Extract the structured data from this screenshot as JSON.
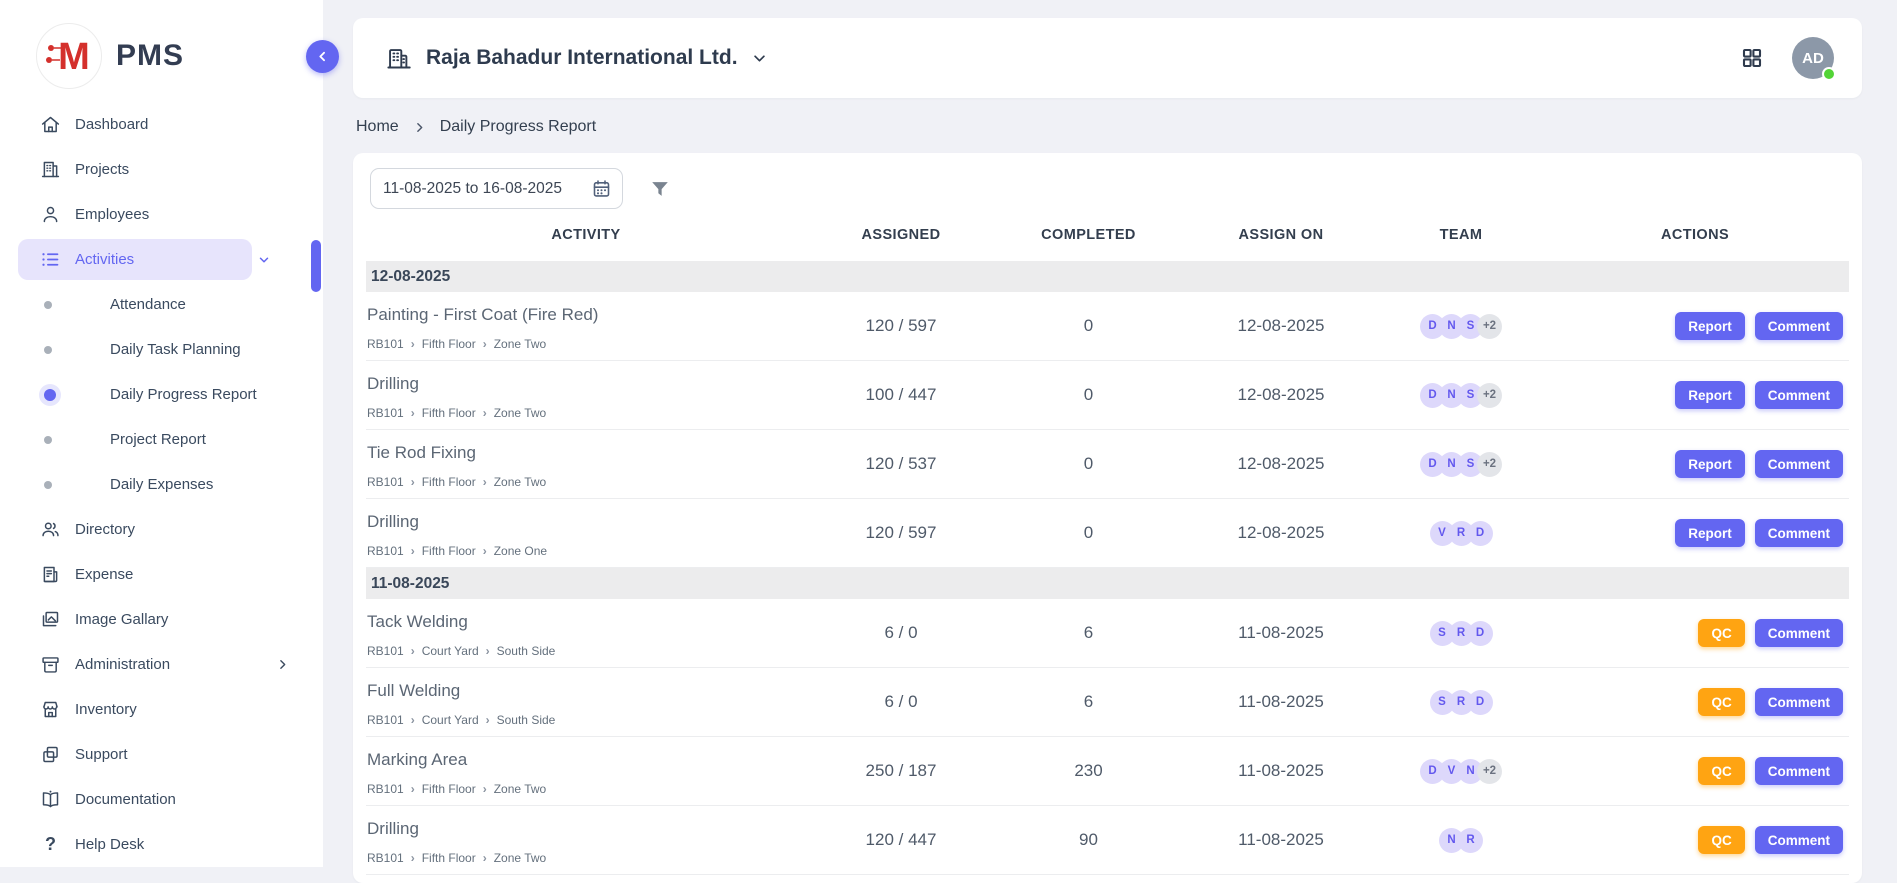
{
  "app": {
    "logo_letter": "M",
    "logo_text": "PMS"
  },
  "colors": {
    "accent": "#6366F1",
    "accent_light": "#E7E4FC",
    "qc_orange": "#FFA412",
    "logo_red": "#D4302C",
    "page_bg": "#F0F1F6",
    "avatar_bg": "#8C98A8",
    "online_green": "#53D437",
    "group_row_bg": "#ECECED"
  },
  "sidebar": {
    "items": [
      {
        "label": "Dashboard",
        "icon": "home-icon"
      },
      {
        "label": "Projects",
        "icon": "building-icon"
      },
      {
        "label": "Employees",
        "icon": "user-icon"
      },
      {
        "label": "Activities",
        "icon": "list-icon",
        "state": "active-expanded"
      },
      {
        "label": "Attendance",
        "icon": "dot"
      },
      {
        "label": "Daily Task Planning",
        "icon": "dot"
      },
      {
        "label": "Daily Progress Report",
        "icon": "dot",
        "state": "active"
      },
      {
        "label": "Project Report",
        "icon": "dot"
      },
      {
        "label": "Daily Expenses",
        "icon": "dot"
      },
      {
        "label": "Directory",
        "icon": "users-icon"
      },
      {
        "label": "Expense",
        "icon": "receipt-icon"
      },
      {
        "label": "Image Gallary",
        "icon": "image-icon"
      },
      {
        "label": "Administration",
        "icon": "archive-icon",
        "chevron": "right"
      },
      {
        "label": "Inventory",
        "icon": "store-icon"
      },
      {
        "label": "Support",
        "icon": "copy-icon"
      },
      {
        "label": "Documentation",
        "icon": "book-icon"
      },
      {
        "label": "Help Desk",
        "icon": "question-icon"
      }
    ]
  },
  "header": {
    "company": "Raja Bahadur International Ltd.",
    "avatar_initials": "AD"
  },
  "breadcrumb": {
    "items": [
      "Home",
      "Daily Progress Report"
    ]
  },
  "filters": {
    "date_range": "11-08-2025 to 16-08-2025"
  },
  "table": {
    "columns": [
      "ACTIVITY",
      "ASSIGNED",
      "COMPLETED",
      "ASSIGN ON",
      "TEAM",
      "ACTIONS"
    ],
    "groups": [
      {
        "date": "12-08-2025",
        "rows": [
          {
            "activity": "Painting - First Coat (Fire Red)",
            "path": [
              "RB101",
              "Fifth Floor",
              "Zone Two"
            ],
            "assigned": "120 / 597",
            "completed": "0",
            "assign_on": "12-08-2025",
            "team": [
              "D",
              "N",
              "S"
            ],
            "team_extra": "+2",
            "actions": [
              "Report",
              "Comment"
            ]
          },
          {
            "activity": "Drilling",
            "path": [
              "RB101",
              "Fifth Floor",
              "Zone Two"
            ],
            "assigned": "100 / 447",
            "completed": "0",
            "assign_on": "12-08-2025",
            "team": [
              "D",
              "N",
              "S"
            ],
            "team_extra": "+2",
            "actions": [
              "Report",
              "Comment"
            ]
          },
          {
            "activity": "Tie Rod Fixing",
            "path": [
              "RB101",
              "Fifth Floor",
              "Zone Two"
            ],
            "assigned": "120 / 537",
            "completed": "0",
            "assign_on": "12-08-2025",
            "team": [
              "D",
              "N",
              "S"
            ],
            "team_extra": "+2",
            "actions": [
              "Report",
              "Comment"
            ]
          },
          {
            "activity": "Drilling",
            "path": [
              "RB101",
              "Fifth Floor",
              "Zone One"
            ],
            "assigned": "120 / 597",
            "completed": "0",
            "assign_on": "12-08-2025",
            "team": [
              "V",
              "R",
              "D"
            ],
            "team_extra": null,
            "actions": [
              "Report",
              "Comment"
            ]
          }
        ]
      },
      {
        "date": "11-08-2025",
        "rows": [
          {
            "activity": "Tack Welding",
            "path": [
              "RB101",
              "Court Yard",
              "South Side"
            ],
            "assigned": "6 / 0",
            "completed": "6",
            "assign_on": "11-08-2025",
            "team": [
              "S",
              "R",
              "D"
            ],
            "team_extra": null,
            "actions": [
              "QC",
              "Comment"
            ]
          },
          {
            "activity": "Full Welding",
            "path": [
              "RB101",
              "Court Yard",
              "South Side"
            ],
            "assigned": "6 / 0",
            "completed": "6",
            "assign_on": "11-08-2025",
            "team": [
              "S",
              "R",
              "D"
            ],
            "team_extra": null,
            "actions": [
              "QC",
              "Comment"
            ]
          },
          {
            "activity": "Marking Area",
            "path": [
              "RB101",
              "Fifth Floor",
              "Zone Two"
            ],
            "assigned": "250 / 187",
            "completed": "230",
            "assign_on": "11-08-2025",
            "team": [
              "D",
              "V",
              "N"
            ],
            "team_extra": "+2",
            "actions": [
              "QC",
              "Comment"
            ]
          },
          {
            "activity": "Drilling",
            "path": [
              "RB101",
              "Fifth Floor",
              "Zone Two"
            ],
            "assigned": "120 / 447",
            "completed": "90",
            "assign_on": "11-08-2025",
            "team": [
              "N",
              "R"
            ],
            "team_extra": null,
            "actions": [
              "QC",
              "Comment"
            ]
          }
        ]
      }
    ]
  }
}
